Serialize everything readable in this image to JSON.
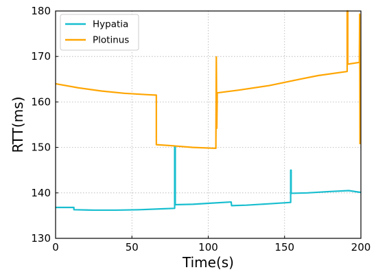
{
  "chart_data": {
    "type": "line",
    "xlabel": "Time(s)",
    "ylabel": "RTT(ms)",
    "xlim": [
      0,
      200
    ],
    "ylim": [
      130,
      180
    ],
    "xticks": [
      0,
      50,
      100,
      150,
      200
    ],
    "yticks": [
      130,
      140,
      150,
      160,
      170,
      180
    ],
    "grid": true,
    "legend_position": "top-left",
    "series": [
      {
        "name": "Hypatia",
        "color": "#17becf",
        "points": [
          [
            0,
            136.8
          ],
          [
            12,
            136.8
          ],
          [
            12,
            136.3
          ],
          [
            25,
            136.2
          ],
          [
            40,
            136.2
          ],
          [
            55,
            136.3
          ],
          [
            70,
            136.5
          ],
          [
            78,
            136.6
          ],
          [
            78,
            150.2
          ],
          [
            78.4,
            150.2
          ],
          [
            78.4,
            137.4
          ],
          [
            90,
            137.5
          ],
          [
            100,
            137.7
          ],
          [
            115,
            138.0
          ],
          [
            115.3,
            137.2
          ],
          [
            125,
            137.3
          ],
          [
            140,
            137.6
          ],
          [
            154,
            137.9
          ],
          [
            154,
            145.0
          ],
          [
            154.3,
            145.0
          ],
          [
            154.3,
            139.9
          ],
          [
            165,
            140.0
          ],
          [
            180,
            140.3
          ],
          [
            192,
            140.5
          ],
          [
            200,
            140.1
          ]
        ]
      },
      {
        "name": "Plotinus",
        "color": "#ffa500",
        "points": [
          [
            0,
            164.0
          ],
          [
            15,
            163.1
          ],
          [
            30,
            162.4
          ],
          [
            45,
            161.9
          ],
          [
            60,
            161.6
          ],
          [
            66,
            161.5
          ],
          [
            66,
            150.6
          ],
          [
            75,
            150.4
          ],
          [
            90,
            150.0
          ],
          [
            105,
            149.8
          ],
          [
            105.3,
            169.9
          ],
          [
            105.6,
            154.2
          ],
          [
            105.9,
            162.0
          ],
          [
            120,
            162.6
          ],
          [
            140,
            163.6
          ],
          [
            160,
            165.0
          ],
          [
            172,
            165.8
          ],
          [
            191,
            166.7
          ],
          [
            191,
            180.0
          ],
          [
            191.4,
            180.0
          ],
          [
            191.4,
            168.3
          ],
          [
            199,
            168.7
          ],
          [
            199.2,
            179.3
          ],
          [
            199.4,
            150.7
          ]
        ]
      }
    ]
  }
}
